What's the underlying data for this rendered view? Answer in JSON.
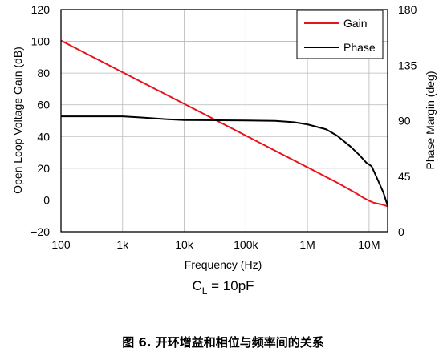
{
  "chart_data": {
    "type": "line",
    "xlabel": "Frequency (Hz)",
    "ylabel_left": "Open Loop Voltage Gain (dB)",
    "ylabel_right": "Phase Margin (deg)",
    "x_scale": "log",
    "xlim": [
      100,
      20000000
    ],
    "ylim_left": [
      -20,
      120
    ],
    "ylim_right": [
      0,
      180
    ],
    "x_ticks": [
      {
        "value": 100,
        "label": "100"
      },
      {
        "value": 1000,
        "label": "1k"
      },
      {
        "value": 10000,
        "label": "10k"
      },
      {
        "value": 100000,
        "label": "100k"
      },
      {
        "value": 1000000,
        "label": "1M"
      },
      {
        "value": 10000000,
        "label": "10M"
      }
    ],
    "y_ticks_left": [
      -20,
      0,
      20,
      40,
      60,
      80,
      100,
      120
    ],
    "y_tick_labels_left": [
      "−20",
      "0",
      "20",
      "40",
      "60",
      "80",
      "100",
      "120"
    ],
    "y_ticks_right": [
      0,
      45,
      90,
      135,
      180
    ],
    "grid": true,
    "legend_position": "top-right",
    "series": [
      {
        "name": "Gain",
        "color": "#e8141b",
        "axis": "left",
        "x": [
          100,
          1000,
          10000,
          100000,
          1000000,
          3000000,
          6000000,
          8000000,
          10000000,
          12000000,
          16000000,
          20000000
        ],
        "y": [
          100.5,
          80.5,
          60.6,
          40.6,
          20.6,
          11.0,
          4.5,
          1.5,
          -0.5,
          -1.8,
          -2.8,
          -4.0
        ]
      },
      {
        "name": "Phase",
        "color": "#000000",
        "axis": "right",
        "x": [
          100,
          1000,
          2000,
          5000,
          10000,
          100000,
          300000,
          600000,
          1000000,
          2000000,
          3000000,
          5000000,
          7000000,
          9000000,
          11000000,
          13000000,
          15000000,
          17000000,
          20000000
        ],
        "y": [
          93.5,
          93.5,
          92.6,
          91.2,
          90.5,
          90.2,
          89.8,
          88.8,
          87.0,
          83.0,
          78.0,
          69.0,
          62.0,
          56.0,
          53.0,
          45.0,
          38.0,
          32.0,
          21.0
        ]
      }
    ]
  },
  "condition_text": {
    "main": "C",
    "sub": "L",
    "rest": " = 10pF"
  },
  "caption": "图 6. 开环增益和相位与频率间的关系"
}
